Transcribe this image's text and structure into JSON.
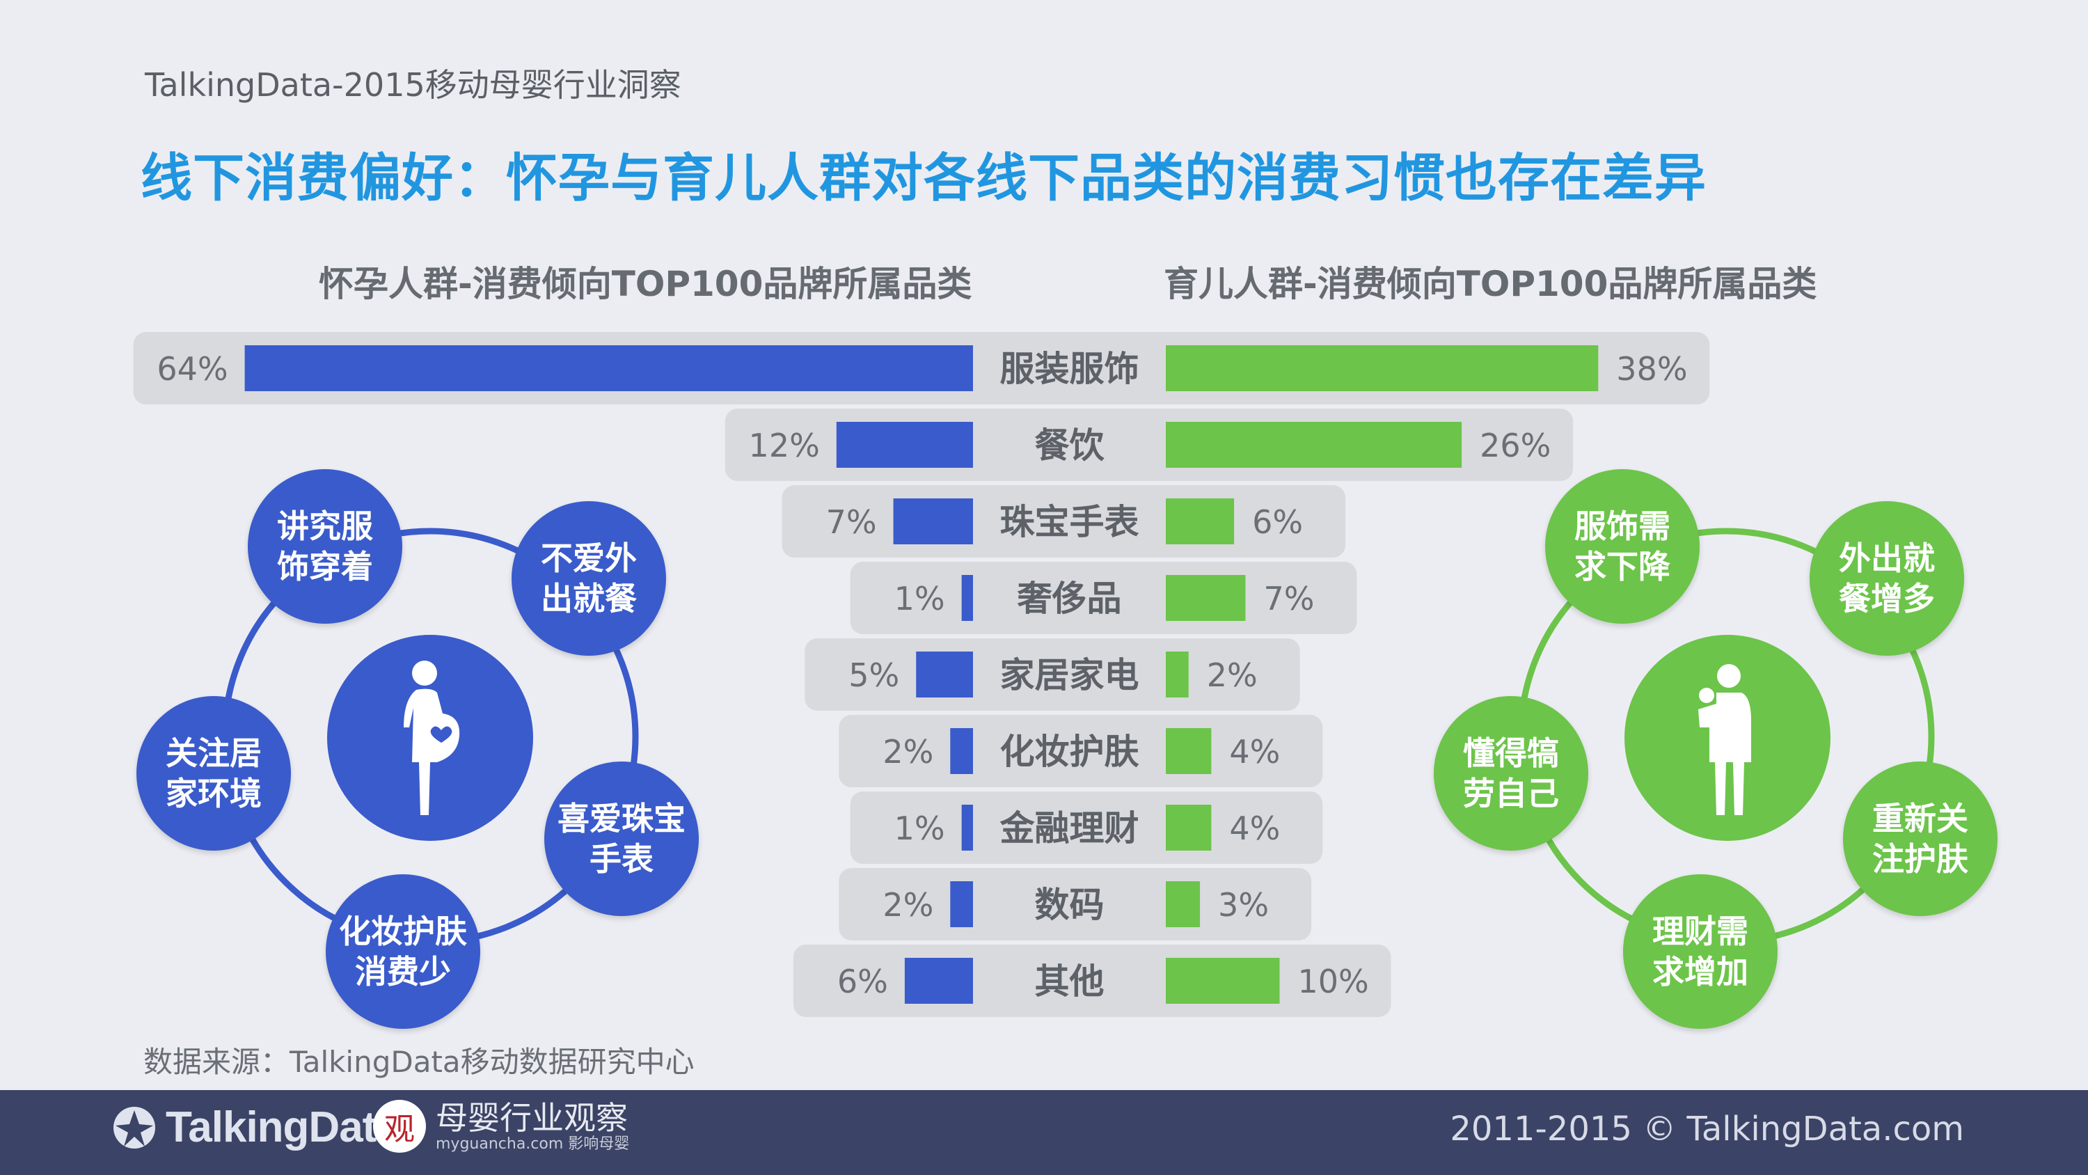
{
  "header": {
    "subtitle": "TalkingData-2015移动母婴行业洞察",
    "title": "线下消费偏好：怀孕与育儿人群对各线下品类的消费习惯也存在差异"
  },
  "columns": {
    "left_heading": "怀孕人群-消费倾向TOP100品牌所属品类",
    "right_heading": "育儿人群-消费倾向TOP100品牌所属品类"
  },
  "chart_data": {
    "type": "bar",
    "orientation": "horizontal-butterfly",
    "categories": [
      "服装服饰",
      "餐饮",
      "珠宝手表",
      "奢侈品",
      "家居家电",
      "化妆护肤",
      "金融理财",
      "数码",
      "其他"
    ],
    "series": [
      {
        "name": "怀孕人群",
        "color": "#3a5bcb",
        "values": [
          64,
          12,
          7,
          1,
          5,
          2,
          1,
          2,
          6
        ],
        "labels": [
          "64%",
          "12%",
          "7%",
          "1%",
          "5%",
          "2%",
          "1%",
          "2%",
          "6%"
        ]
      },
      {
        "name": "育儿人群",
        "color": "#6cc44a",
        "values": [
          38,
          26,
          6,
          7,
          2,
          4,
          4,
          3,
          10
        ],
        "labels": [
          "38%",
          "26%",
          "6%",
          "7%",
          "2%",
          "4%",
          "4%",
          "3%",
          "10%"
        ]
      }
    ],
    "unit": "%"
  },
  "pregnant": {
    "traits": [
      "讲究服\n饰穿着",
      "不爱外\n出就餐",
      "喜爱珠宝\n手表",
      "化妆护肤\n消费少",
      "关注居\n家环境"
    ],
    "icon": "pregnant-woman-icon"
  },
  "parenting": {
    "traits": [
      "服饰需\n求下降",
      "外出就\n餐增多",
      "重新关\n注护肤",
      "理财需\n求增加",
      "懂得犒\n劳自己"
    ],
    "icon": "mother-with-child-icon"
  },
  "source": "数据来源：TalkingData移动数据研究中心",
  "footer": {
    "logo_text": "TalkingData",
    "partner_name": "母婴行业观察",
    "partner_seal": "观",
    "partner_url": "myguancha.com 影响母婴",
    "copyright": "2011-2015 © TalkingData.com"
  },
  "colors": {
    "blue": "#3a5bcb",
    "green": "#6cc44a",
    "title": "#2196e0",
    "footer": "#3b4366"
  }
}
